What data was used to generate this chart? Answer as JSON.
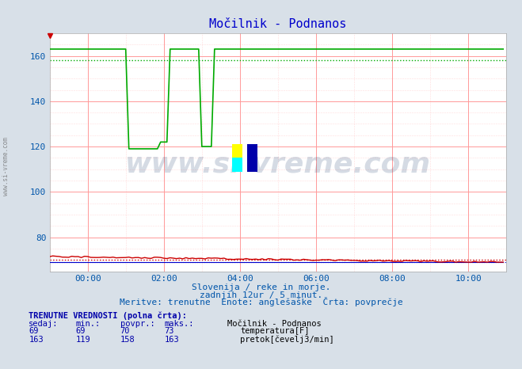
{
  "title": "Močilnik - Podnanos",
  "bg_color": "#d8e0e8",
  "plot_bg_color": "#ffffff",
  "grid_color_major": "#ff9999",
  "grid_color_minor": "#ffcccc",
  "x_min": 0,
  "x_max": 144,
  "y_min": 65,
  "y_max": 170,
  "y_ticks": [
    80,
    100,
    120,
    140,
    160
  ],
  "x_tick_labels": [
    "00:00",
    "02:00",
    "04:00",
    "06:00",
    "08:00",
    "10:00"
  ],
  "x_tick_positions": [
    12,
    36,
    60,
    84,
    108,
    132
  ],
  "temp_color": "#cc0000",
  "flow_color": "#00aa00",
  "height_color": "#0000cc",
  "watermark_text": "www.si-vreme.com",
  "watermark_color": "#1a3a6b",
  "watermark_alpha": 0.18,
  "subtitle1": "Slovenija / reke in morje.",
  "subtitle2": "zadnjih 12ur / 5 minut.",
  "subtitle3": "Meritve: trenutne  Enote: anglešaške  Črta: povprečje",
  "label_color": "#0055aa",
  "temp_val_current": 69,
  "temp_val_min": 69,
  "temp_val_avg": 70,
  "temp_val_max": 73,
  "flow_val_current": 163,
  "flow_val_min": 119,
  "flow_val_avg": 158,
  "flow_val_max": 163,
  "temp_avg_line": 70,
  "flow_avg_line": 158,
  "height_avg_line": 69,
  "N": 144
}
